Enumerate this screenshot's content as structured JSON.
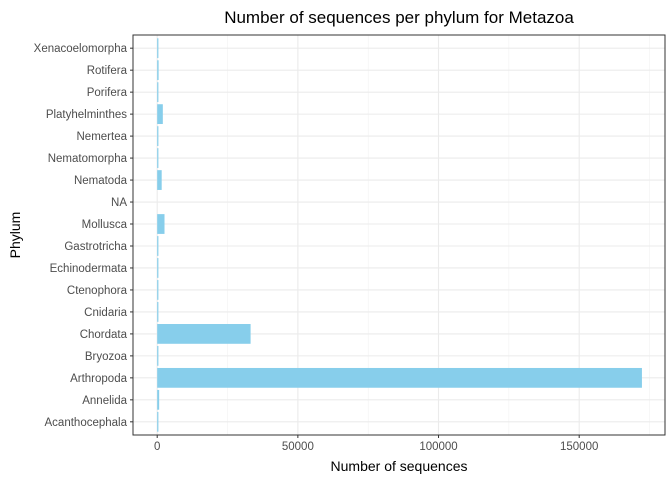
{
  "chart_data": {
    "type": "bar",
    "orientation": "horizontal",
    "title": "Number of sequences per phylum for Metazoa",
    "xlabel": "Number of sequences",
    "ylabel": "Phylum",
    "xlim": [
      -8600,
      180500
    ],
    "x_ticks": [
      0,
      50000,
      100000,
      150000
    ],
    "x_tick_labels": [
      "0",
      "50000",
      "100000",
      "150000"
    ],
    "categories": [
      "Acanthocephala",
      "Annelida",
      "Arthropoda",
      "Bryozoa",
      "Chordata",
      "Cnidaria",
      "Ctenophora",
      "Echinodermata",
      "Gastrotricha",
      "Mollusca",
      "NA",
      "Nematoda",
      "Nematomorpha",
      "Nemertea",
      "Platyhelminthes",
      "Porifera",
      "Rotifera",
      "Xenacoelomorpha"
    ],
    "values": [
      50,
      700,
      172300,
      40,
      33200,
      300,
      20,
      400,
      30,
      2600,
      0,
      1600,
      20,
      50,
      2000,
      60,
      500,
      10
    ],
    "bar_color": "#87CEEB",
    "grid": true,
    "legend": "none"
  }
}
